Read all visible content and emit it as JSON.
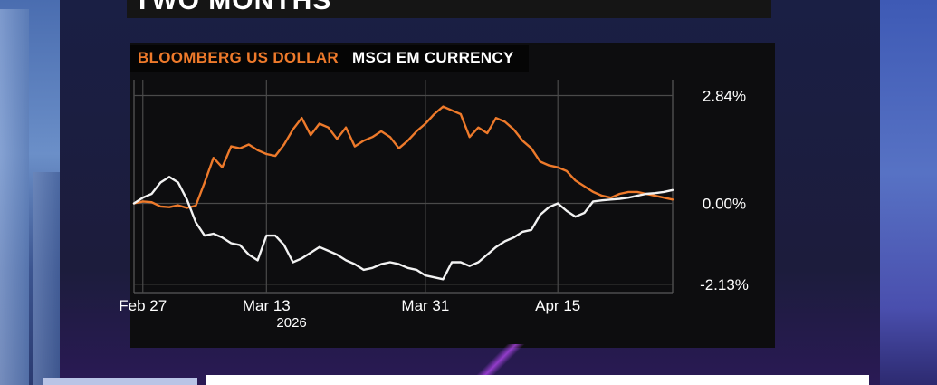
{
  "header": {
    "title": "TWO MONTHS"
  },
  "legend": {
    "series_1_label": "BLOOMBERG US DOLLAR",
    "series_2_label": "MSCI EM CURRENCY"
  },
  "colors": {
    "series_1": "#ee7a2b",
    "series_2": "#f2f2f2",
    "panel_bg": "#0d0d0f",
    "grid": "#4a4a4a"
  },
  "chart_data": {
    "type": "line",
    "x_ticks": [
      "Feb 27",
      "Mar 13",
      "Mar 31",
      "Apr 15"
    ],
    "x_tick_days": [
      14,
      28,
      46,
      61
    ],
    "x_sublabel": "2026",
    "y_ticks": [
      "2.84%",
      "0.00%",
      "-2.13%"
    ],
    "y_tick_values": [
      2.84,
      0.0,
      -2.13
    ],
    "ylim": [
      -2.35,
      3.4
    ],
    "xlim": [
      13,
      74
    ],
    "grid": "horizontal and vertical",
    "legend_position": "top-left",
    "series": [
      {
        "name": "BLOOMBERG US DOLLAR",
        "color": "#ee7a2b",
        "x": [
          13,
          14,
          15,
          16,
          17,
          18,
          19,
          20,
          21,
          22,
          23,
          24,
          25,
          26,
          27,
          28,
          29,
          30,
          31,
          32,
          33,
          34,
          35,
          36,
          37,
          38,
          39,
          40,
          41,
          42,
          43,
          44,
          45,
          46,
          47,
          48,
          49,
          50,
          51,
          52,
          53,
          54,
          55,
          56,
          57,
          58,
          59,
          60,
          61,
          62,
          63,
          64,
          65,
          66,
          67,
          68,
          69,
          70,
          71,
          72,
          73,
          74
        ],
        "values": [
          0.0,
          0.05,
          0.03,
          -0.08,
          -0.1,
          -0.05,
          -0.12,
          -0.06,
          0.55,
          1.2,
          0.95,
          1.5,
          1.45,
          1.55,
          1.4,
          1.3,
          1.25,
          1.55,
          1.95,
          2.25,
          1.8,
          2.1,
          2.0,
          1.7,
          2.0,
          1.5,
          1.65,
          1.75,
          1.9,
          1.75,
          1.45,
          1.65,
          1.9,
          2.1,
          2.35,
          2.55,
          2.45,
          2.35,
          1.75,
          2.0,
          1.85,
          2.25,
          2.15,
          1.95,
          1.65,
          1.45,
          1.1,
          1.0,
          0.95,
          0.85,
          0.6,
          0.45,
          0.3,
          0.2,
          0.15,
          0.25,
          0.3,
          0.3,
          0.25,
          0.2,
          0.15,
          0.1
        ]
      },
      {
        "name": "MSCI EM CURRENCY",
        "color": "#f2f2f2",
        "x": [
          13,
          14,
          15,
          16,
          17,
          18,
          19,
          20,
          21,
          22,
          23,
          24,
          25,
          26,
          27,
          28,
          29,
          30,
          31,
          32,
          33,
          34,
          35,
          36,
          37,
          38,
          39,
          40,
          41,
          42,
          43,
          44,
          45,
          46,
          47,
          48,
          49,
          50,
          51,
          52,
          53,
          54,
          55,
          56,
          57,
          58,
          59,
          60,
          61,
          62,
          63,
          64,
          65,
          66,
          67,
          68,
          69,
          70,
          71,
          72,
          73,
          74
        ],
        "values": [
          0.0,
          0.15,
          0.25,
          0.55,
          0.7,
          0.55,
          0.1,
          -0.5,
          -0.85,
          -0.8,
          -0.9,
          -1.05,
          -1.1,
          -1.35,
          -1.5,
          -0.85,
          -0.85,
          -1.1,
          -1.55,
          -1.45,
          -1.3,
          -1.15,
          -1.25,
          -1.35,
          -1.5,
          -1.6,
          -1.75,
          -1.7,
          -1.6,
          -1.55,
          -1.6,
          -1.7,
          -1.75,
          -1.9,
          -1.95,
          -2.0,
          -1.55,
          -1.55,
          -1.65,
          -1.55,
          -1.35,
          -1.15,
          -1.0,
          -0.9,
          -0.75,
          -0.7,
          -0.3,
          -0.1,
          0.0,
          -0.2,
          -0.35,
          -0.25,
          0.05,
          0.08,
          0.1,
          0.12,
          0.15,
          0.2,
          0.25,
          0.27,
          0.3,
          0.35
        ]
      }
    ]
  }
}
